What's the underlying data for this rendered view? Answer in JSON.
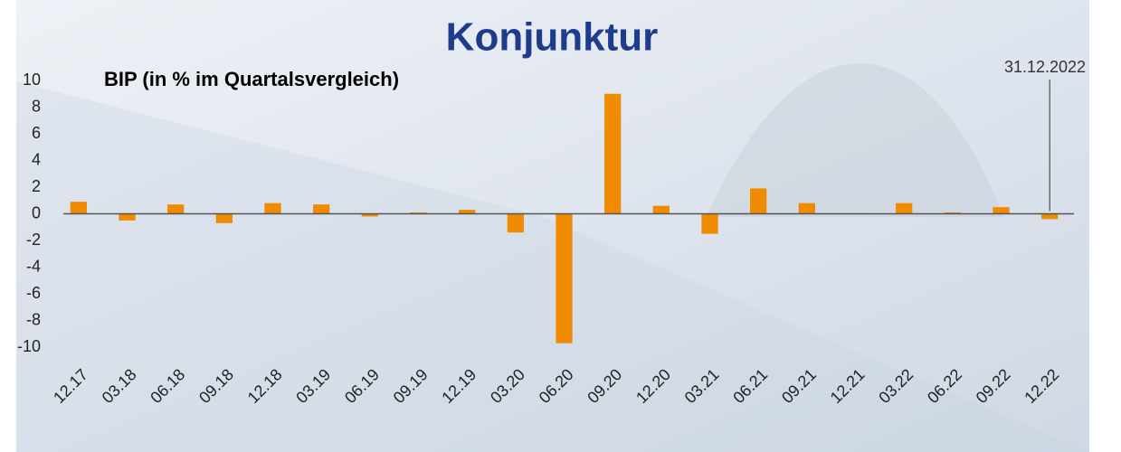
{
  "chart_data": {
    "type": "bar",
    "title": "Konjunktur",
    "subtitle": "BIP (in % im Quartalsvergleich)",
    "annotation": "31.12.2022",
    "categories": [
      "12.17",
      "03.18",
      "06.18",
      "09.18",
      "12.18",
      "03.19",
      "06.19",
      "09.19",
      "12.19",
      "03.20",
      "06.20",
      "09.20",
      "12.20",
      "03.21",
      "06.21",
      "09.21",
      "12.21",
      "03.22",
      "06.22",
      "09.22",
      "12.22"
    ],
    "values": [
      0.9,
      -0.5,
      0.7,
      -0.7,
      0.8,
      0.7,
      -0.2,
      0.1,
      0.3,
      -1.4,
      -9.7,
      9.0,
      0.6,
      -1.5,
      1.9,
      0.8,
      0.0,
      0.8,
      0.1,
      0.5,
      -0.4
    ],
    "color": "#f08a00",
    "ylim": [
      -10,
      10
    ],
    "yticks": [
      -10,
      -8,
      -6,
      -4,
      -2,
      0,
      2,
      4,
      6,
      8,
      10
    ],
    "grid": false
  }
}
